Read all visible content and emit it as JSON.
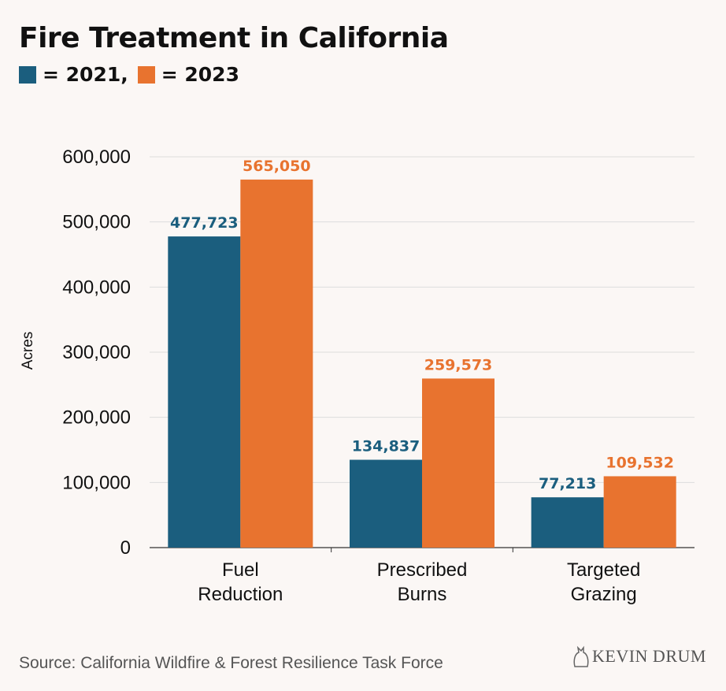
{
  "title": "Fire Treatment in California",
  "legend": [
    {
      "label": "= 2021,",
      "color": "#1b5e7e"
    },
    {
      "label": "= 2023",
      "color": "#e8732f"
    }
  ],
  "source": "Source: California Wildfire & Forest Resilience Task Force",
  "brand": "KEVIN DRUM",
  "chart_data": {
    "type": "bar",
    "title": "Fire Treatment in California",
    "xlabel": "",
    "ylabel": "Acres",
    "ylim": [
      0,
      600000
    ],
    "yticks": [
      0,
      100000,
      200000,
      300000,
      400000,
      500000,
      600000
    ],
    "ytick_labels": [
      "0",
      "100,000",
      "200,000",
      "300,000",
      "400,000",
      "500,000",
      "600,000"
    ],
    "grid": true,
    "categories": [
      [
        "Fuel",
        "Reduction"
      ],
      [
        "Prescribed",
        "Burns"
      ],
      [
        "Targeted",
        "Grazing"
      ]
    ],
    "series": [
      {
        "name": "2021",
        "color": "#1b5e7e",
        "values": [
          477723,
          134837,
          77213
        ],
        "labels": [
          "477,723",
          "134,837",
          "77,213"
        ]
      },
      {
        "name": "2023",
        "color": "#e8732f",
        "values": [
          565050,
          259573,
          109532
        ],
        "labels": [
          "565,050",
          "259,573",
          "109,532"
        ]
      }
    ]
  }
}
